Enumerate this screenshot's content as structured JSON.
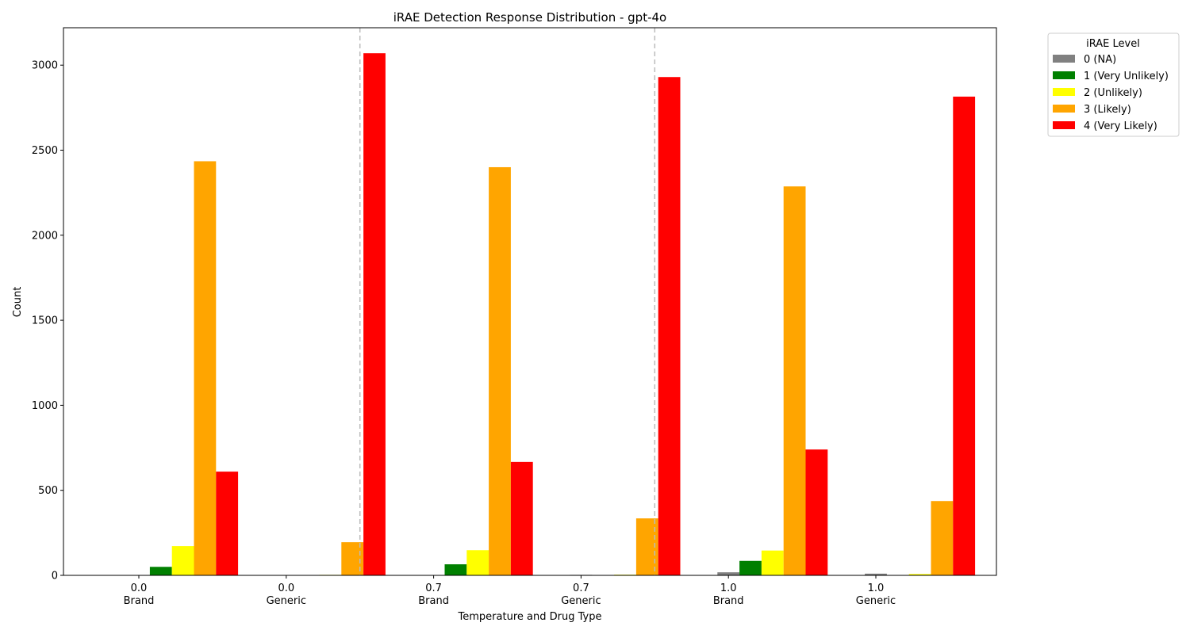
{
  "chart_data": {
    "type": "bar",
    "title": "iRAE Detection Response Distribution - gpt-4o",
    "xlabel": "Temperature and Drug Type",
    "ylabel": "Count",
    "ylim": [
      0,
      3220
    ],
    "yticks": [
      0,
      500,
      1000,
      1500,
      2000,
      2500,
      3000
    ],
    "grid": false,
    "categories": [
      {
        "temp": "0.0",
        "drug": "Brand"
      },
      {
        "temp": "0.0",
        "drug": "Generic"
      },
      {
        "temp": "0.7",
        "drug": "Brand"
      },
      {
        "temp": "0.7",
        "drug": "Generic"
      },
      {
        "temp": "1.0",
        "drug": "Brand"
      },
      {
        "temp": "1.0",
        "drug": "Generic"
      }
    ],
    "group_separators_after": [
      1,
      3
    ],
    "legend": {
      "title": "iRAE Level",
      "placement": "outside-top-right"
    },
    "series": [
      {
        "name": "0 (NA)",
        "color": "#808080",
        "values": [
          0,
          0,
          0,
          3,
          18,
          10
        ]
      },
      {
        "name": "1 (Very Unlikely)",
        "color": "#008000",
        "values": [
          50,
          0,
          65,
          0,
          85,
          0
        ]
      },
      {
        "name": "2 (Unlikely)",
        "color": "#ffff00",
        "values": [
          172,
          3,
          148,
          4,
          146,
          8
        ]
      },
      {
        "name": "3 (Likely)",
        "color": "#ffa500",
        "values": [
          2435,
          195,
          2400,
          335,
          2287,
          437
        ]
      },
      {
        "name": "4 (Very Likely)",
        "color": "#ff0000",
        "values": [
          610,
          3070,
          667,
          2930,
          740,
          2815
        ]
      }
    ]
  }
}
